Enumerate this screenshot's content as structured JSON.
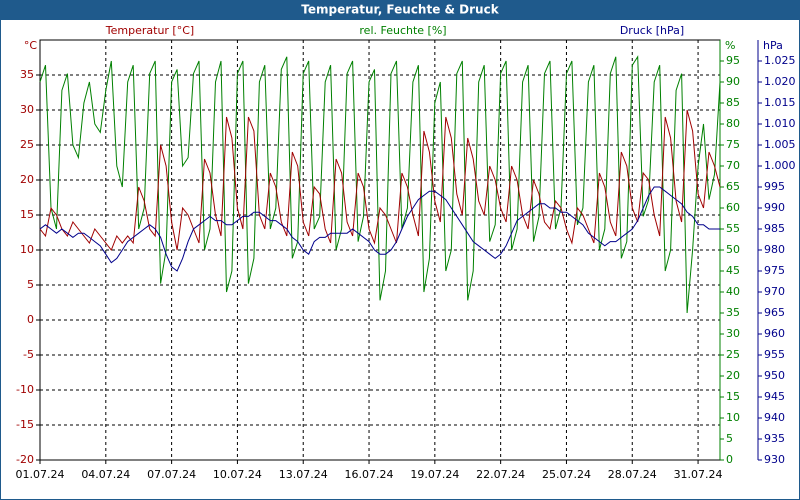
{
  "chart_data": {
    "type": "line",
    "title": "Temperatur, Feuchte & Druck",
    "ylabel": "Temperatur [°C]",
    "y2label": "rel. Feuchte [%]",
    "y3label": "Druck [hPa]",
    "yunit": "°C",
    "y2unit": "%",
    "y3unit": "hPa",
    "grid": true,
    "xlim": [
      1,
      32
    ],
    "xticks": [
      {
        "value": 1,
        "label": "01.07.24"
      },
      {
        "value": 4,
        "label": "04.07.24"
      },
      {
        "value": 7,
        "label": "07.07.24"
      },
      {
        "value": 10,
        "label": "10.07.24"
      },
      {
        "value": 13,
        "label": "13.07.24"
      },
      {
        "value": 16,
        "label": "16.07.24"
      },
      {
        "value": 19,
        "label": "19.07.24"
      },
      {
        "value": 22,
        "label": "22.07.24"
      },
      {
        "value": 25,
        "label": "25.07.24"
      },
      {
        "value": 28,
        "label": "28.07.24"
      },
      {
        "value": 31,
        "label": "31.07.24"
      }
    ],
    "ylim": [
      -20,
      40
    ],
    "yticks": [
      -20,
      -15,
      -10,
      -5,
      0,
      5,
      10,
      15,
      20,
      25,
      30,
      35
    ],
    "y2lim": [
      0,
      100
    ],
    "y2ticks": [
      0,
      5,
      10,
      15,
      20,
      25,
      30,
      35,
      40,
      45,
      50,
      55,
      60,
      65,
      70,
      75,
      80,
      85,
      90,
      95
    ],
    "y3lim": [
      930,
      1030
    ],
    "y3ticks": [
      930,
      935,
      940,
      945,
      950,
      955,
      960,
      965,
      970,
      975,
      980,
      985,
      990,
      995,
      {
        "value": 1000,
        "label": "1.000"
      },
      {
        "value": 1005,
        "label": "1.005"
      },
      {
        "value": 1010,
        "label": "1.010"
      },
      {
        "value": 1015,
        "label": "1.015"
      },
      {
        "value": 1020,
        "label": "1.020"
      },
      {
        "value": 1025,
        "label": "1.025"
      }
    ],
    "x": [
      1,
      1.25,
      1.5,
      1.75,
      2,
      2.25,
      2.5,
      2.75,
      3,
      3.25,
      3.5,
      3.75,
      4,
      4.25,
      4.5,
      4.75,
      5,
      5.25,
      5.5,
      5.75,
      6,
      6.25,
      6.5,
      6.75,
      7,
      7.25,
      7.5,
      7.75,
      8,
      8.25,
      8.5,
      8.75,
      9,
      9.25,
      9.5,
      9.75,
      10,
      10.25,
      10.5,
      10.75,
      11,
      11.25,
      11.5,
      11.75,
      12,
      12.25,
      12.5,
      12.75,
      13,
      13.25,
      13.5,
      13.75,
      14,
      14.25,
      14.5,
      14.75,
      15,
      15.25,
      15.5,
      15.75,
      16,
      16.25,
      16.5,
      16.75,
      17,
      17.25,
      17.5,
      17.75,
      18,
      18.25,
      18.5,
      18.75,
      19,
      19.25,
      19.5,
      19.75,
      20,
      20.25,
      20.5,
      20.75,
      21,
      21.25,
      21.5,
      21.75,
      22,
      22.25,
      22.5,
      22.75,
      23,
      23.25,
      23.5,
      23.75,
      24,
      24.25,
      24.5,
      24.75,
      25,
      25.25,
      25.5,
      25.75,
      26,
      26.25,
      26.5,
      26.75,
      27,
      27.25,
      27.5,
      27.75,
      28,
      28.25,
      28.5,
      28.75,
      29,
      29.25,
      29.5,
      29.75,
      30,
      30.25,
      30.5,
      30.75,
      31,
      31.25,
      31.5,
      31.75,
      32
    ],
    "series": [
      {
        "name": "Temperatur",
        "color": "#a00000",
        "axis": "y",
        "values": [
          13,
          12,
          16,
          15,
          13,
          12,
          14,
          13,
          12,
          11,
          13,
          12,
          11,
          10,
          12,
          11,
          12,
          11,
          19,
          17,
          13,
          12,
          25,
          22,
          14,
          10,
          16,
          15,
          13,
          11,
          23,
          21,
          15,
          12,
          29,
          26,
          16,
          13,
          29,
          27,
          15,
          13,
          21,
          19,
          14,
          12,
          24,
          22,
          14,
          12,
          19,
          18,
          13,
          11,
          23,
          21,
          14,
          12,
          21,
          19,
          13,
          11,
          16,
          15,
          13,
          11,
          21,
          19,
          15,
          12,
          27,
          24,
          17,
          14,
          29,
          26,
          18,
          15,
          26,
          23,
          17,
          15,
          22,
          20,
          16,
          14,
          22,
          20,
          15,
          13,
          20,
          18,
          14,
          13,
          17,
          16,
          13,
          11,
          16,
          15,
          13,
          11,
          21,
          19,
          14,
          12,
          24,
          22,
          16,
          14,
          21,
          20,
          15,
          12,
          29,
          26,
          17,
          14,
          30,
          27,
          18,
          16,
          24,
          22,
          19
        ]
      },
      {
        "name": "rel. Feuchte",
        "color": "#008000",
        "axis": "y2",
        "values": [
          90,
          94,
          60,
          55,
          88,
          92,
          75,
          72,
          85,
          90,
          80,
          78,
          88,
          95,
          70,
          65,
          90,
          94,
          55,
          60,
          92,
          95,
          42,
          50,
          90,
          93,
          70,
          72,
          92,
          95,
          50,
          55,
          90,
          95,
          40,
          45,
          92,
          95,
          42,
          48,
          90,
          94,
          55,
          60,
          93,
          96,
          48,
          52,
          92,
          95,
          55,
          58,
          90,
          94,
          50,
          55,
          92,
          95,
          52,
          58,
          90,
          93,
          38,
          45,
          92,
          95,
          55,
          60,
          90,
          94,
          40,
          48,
          85,
          90,
          45,
          50,
          92,
          95,
          38,
          45,
          90,
          94,
          52,
          56,
          92,
          95,
          50,
          55,
          90,
          94,
          52,
          58,
          92,
          95,
          55,
          60,
          92,
          95,
          56,
          60,
          90,
          94,
          50,
          55,
          92,
          96,
          48,
          52,
          94,
          96,
          58,
          62,
          90,
          94,
          45,
          50,
          88,
          92,
          35,
          50,
          70,
          80,
          62,
          68,
          90
        ]
      },
      {
        "name": "Druck",
        "color": "#00008b",
        "axis": "y3",
        "values": [
          985,
          986,
          985,
          984,
          985,
          984,
          983,
          984,
          984,
          983,
          982,
          981,
          979,
          977,
          978,
          980,
          982,
          983,
          984,
          985,
          986,
          985,
          983,
          979,
          976,
          975,
          978,
          982,
          985,
          986,
          987,
          988,
          987,
          987,
          986,
          986,
          987,
          988,
          988,
          989,
          989,
          988,
          987,
          987,
          986,
          985,
          983,
          982,
          980,
          979,
          982,
          983,
          983,
          984,
          984,
          984,
          984,
          985,
          984,
          983,
          982,
          980,
          979,
          979,
          980,
          982,
          985,
          988,
          990,
          992,
          993,
          994,
          994,
          993,
          992,
          990,
          988,
          986,
          984,
          982,
          981,
          980,
          979,
          978,
          979,
          981,
          984,
          987,
          988,
          989,
          990,
          991,
          991,
          990,
          990,
          989,
          989,
          988,
          987,
          986,
          984,
          983,
          982,
          981,
          982,
          982,
          983,
          984,
          985,
          987,
          990,
          993,
          995,
          995,
          994,
          993,
          992,
          991,
          989,
          988,
          986,
          986,
          985,
          985,
          985
        ]
      }
    ]
  }
}
